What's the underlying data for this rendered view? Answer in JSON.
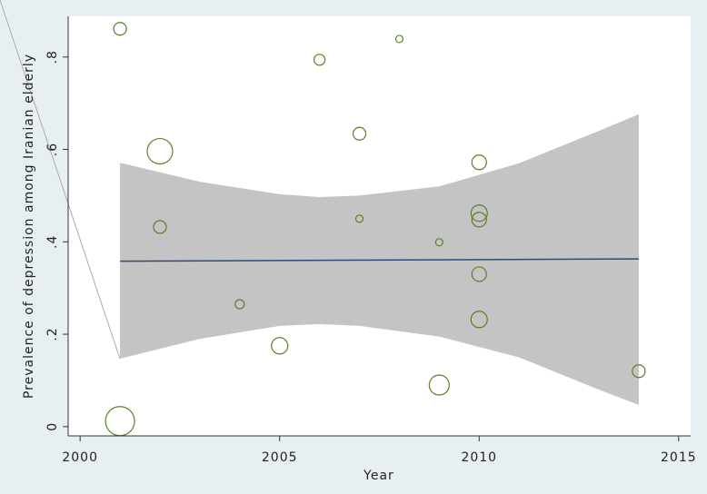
{
  "chart_data": {
    "type": "scatter",
    "x_label": "Year",
    "y_label": "Prevalence of depression among Iranian elderly",
    "xlim": [
      1999.7,
      2015.3
    ],
    "ylim": [
      -0.02,
      0.888
    ],
    "xticks": [
      2000,
      2005,
      2010,
      2015
    ],
    "yticks": [
      0,
      {
        "value": 0.2,
        "label": ".2"
      },
      {
        "value": 0.4,
        "label": ".4"
      },
      {
        "value": 0.6,
        "label": ".6"
      },
      {
        "value": 0.8,
        "label": ".8"
      }
    ],
    "points": {
      "color": "#5a7f2a",
      "x": [
        2001,
        2006,
        2008,
        2002,
        2007,
        2010,
        2002,
        2010,
        2010,
        2007,
        2009,
        2010,
        2004,
        2010,
        2005,
        2009,
        2014,
        2001
      ],
      "y": [
        0.861,
        0.794,
        0.839,
        0.596,
        0.634,
        0.572,
        0.432,
        0.462,
        0.448,
        0.45,
        0.399,
        0.33,
        0.265,
        0.232,
        0.175,
        0.09,
        0.12,
        0.012
      ],
      "sizes": [
        49,
        36,
        16,
        196,
        49,
        64,
        49,
        81,
        64,
        16,
        16,
        64,
        25,
        81,
        81,
        121,
        49,
        256
      ]
    },
    "fit": {
      "color": "#2b4a7a",
      "x": [
        2001,
        2014
      ],
      "values": [
        0.358,
        0.363
      ]
    },
    "ci": {
      "color": "#c4c4c4",
      "x": [
        2001,
        2003,
        2005,
        2006,
        2007,
        2009,
        2011,
        2013,
        2014
      ],
      "upper": [
        0.571,
        0.53,
        0.503,
        0.497,
        0.5,
        0.52,
        0.57,
        0.64,
        0.676
      ],
      "lower": [
        0.147,
        0.19,
        0.218,
        0.222,
        0.218,
        0.195,
        0.15,
        0.08,
        0.047
      ]
    }
  }
}
